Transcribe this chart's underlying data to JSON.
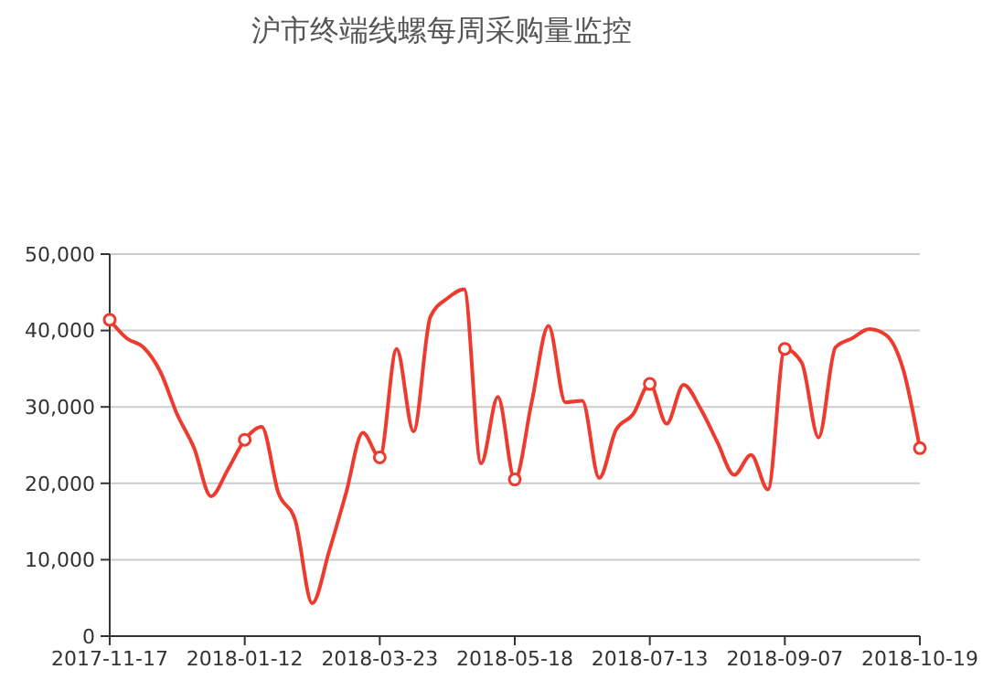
{
  "chart_data": {
    "type": "line",
    "title": "沪市终端线螺每周采购量监控",
    "categories": [
      "2017-11-17",
      null,
      null,
      null,
      null,
      null,
      null,
      null,
      "2018-01-12",
      null,
      null,
      null,
      null,
      null,
      null,
      null,
      "2018-03-23",
      null,
      null,
      null,
      null,
      null,
      null,
      null,
      "2018-05-18",
      null,
      null,
      null,
      null,
      null,
      null,
      null,
      "2018-07-13",
      null,
      null,
      null,
      null,
      null,
      null,
      null,
      "2018-09-07",
      null,
      null,
      null,
      null,
      null,
      null,
      null,
      "2018-10-19"
    ],
    "series": [
      {
        "color": "#ee3b2f",
        "values": [
          41400,
          39000,
          37800,
          34600,
          29000,
          24600,
          18300,
          21800,
          25700,
          27400,
          18700,
          15100,
          4300,
          11100,
          18700,
          26600,
          23400,
          37600,
          26800,
          41800,
          44200,
          45400,
          22600,
          31300,
          20500,
          30600,
          40600,
          30600,
          30800,
          20700,
          27000,
          29000,
          33000,
          27800,
          32900,
          29800,
          25400,
          21100,
          23700,
          19200,
          37600,
          35800,
          26000,
          37800,
          39000,
          40200,
          39400,
          35000,
          24600
        ]
      }
    ],
    "ylim": [
      0,
      50000
    ],
    "yticks": [
      {
        "value": 0,
        "label": "0"
      },
      {
        "value": 10000,
        "label": "10,000"
      },
      {
        "value": 20000,
        "label": "20,000"
      },
      {
        "value": 30000,
        "label": "30,000"
      },
      {
        "value": 40000,
        "label": "40,000"
      },
      {
        "value": 50000,
        "label": "50,000"
      }
    ],
    "grid": "y"
  }
}
